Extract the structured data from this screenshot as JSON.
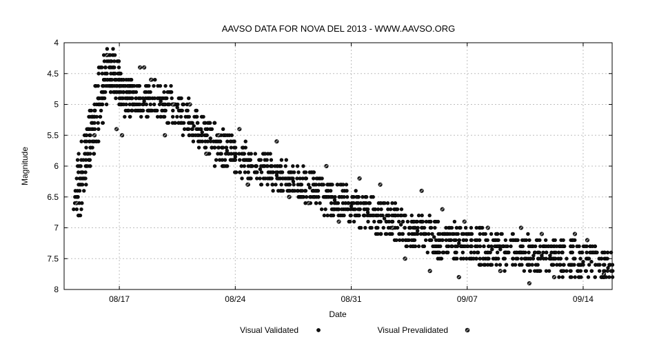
{
  "chart_data": {
    "type": "scatter",
    "title": "AAVSO DATA FOR NOVA DEL 2013 - WWW.AAVSO.ORG",
    "xlabel": "Date",
    "ylabel": "Magnitude",
    "y_inverted": true,
    "ylim": [
      4,
      8
    ],
    "xlim": [
      "2013-08-13 16:00",
      "2013-09-15 18:00"
    ],
    "y_ticks": [
      "4",
      "4.5",
      "5",
      "5.5",
      "6",
      "6.5",
      "7",
      "7.5",
      "8"
    ],
    "x_ticks": [
      {
        "date": "2013-08-17",
        "label": "08/17"
      },
      {
        "date": "2013-08-24",
        "label": "08/24"
      },
      {
        "date": "2013-08-31",
        "label": "08/31"
      },
      {
        "date": "2013-09-07",
        "label": "09/07"
      },
      {
        "date": "2013-09-14",
        "label": "09/14"
      }
    ],
    "grid": true,
    "legend_position": "bottom",
    "series": [
      {
        "name": "Visual Validated",
        "marker": "filled-dot",
        "x": [
          "2013-08-14 12:00",
          "2013-08-14 18:00",
          "2013-08-15 00:00",
          "2013-08-15 06:00",
          "2013-08-15 12:00",
          "2013-08-15 18:00",
          "2013-08-16 00:00",
          "2013-08-16 06:00",
          "2013-08-16 12:00",
          "2013-08-16 18:00",
          "2013-08-17 00:00",
          "2013-08-17 06:00",
          "2013-08-17 12:00",
          "2013-08-17 18:00",
          "2013-08-18 00:00",
          "2013-08-18 12:00",
          "2013-08-19 00:00",
          "2013-08-19 12:00",
          "2013-08-20 00:00",
          "2013-08-20 12:00",
          "2013-08-21 00:00",
          "2013-08-21 12:00",
          "2013-08-22 00:00",
          "2013-08-22 12:00",
          "2013-08-23 00:00",
          "2013-08-23 12:00",
          "2013-08-24 00:00",
          "2013-08-24 12:00",
          "2013-08-25 00:00",
          "2013-08-25 12:00",
          "2013-08-26 00:00",
          "2013-08-26 12:00",
          "2013-08-27 00:00",
          "2013-08-27 12:00",
          "2013-08-28 00:00",
          "2013-08-28 12:00",
          "2013-08-29 00:00",
          "2013-08-29 12:00",
          "2013-08-30 00:00",
          "2013-08-30 12:00",
          "2013-08-31 00:00",
          "2013-08-31 12:00",
          "2013-09-01 00:00",
          "2013-09-01 12:00",
          "2013-09-02 00:00",
          "2013-09-02 12:00",
          "2013-09-03 00:00",
          "2013-09-03 12:00",
          "2013-09-04 00:00",
          "2013-09-04 12:00",
          "2013-09-05 00:00",
          "2013-09-05 12:00",
          "2013-09-06 00:00",
          "2013-09-06 12:00",
          "2013-09-07 00:00",
          "2013-09-07 12:00",
          "2013-09-08 00:00",
          "2013-09-08 12:00",
          "2013-09-09 00:00",
          "2013-09-09 12:00",
          "2013-09-10 00:00",
          "2013-09-10 12:00",
          "2013-09-11 00:00",
          "2013-09-11 12:00",
          "2013-09-12 00:00",
          "2013-09-12 12:00",
          "2013-09-13 00:00",
          "2013-09-13 12:00",
          "2013-09-14 00:00",
          "2013-09-14 12:00",
          "2013-09-15 00:00",
          "2013-09-15 12:00"
        ],
        "y": [
          6.5,
          6.1,
          5.7,
          5.5,
          5.3,
          5.0,
          4.7,
          4.5,
          4.4,
          4.5,
          4.7,
          4.8,
          4.9,
          4.9,
          4.9,
          4.95,
          4.9,
          4.95,
          5.0,
          5.05,
          5.2,
          5.35,
          5.45,
          5.55,
          5.7,
          5.75,
          5.85,
          5.9,
          6.0,
          6.05,
          6.1,
          6.15,
          6.2,
          6.25,
          6.3,
          6.35,
          6.4,
          6.5,
          6.55,
          6.6,
          6.65,
          6.7,
          6.75,
          6.8,
          6.85,
          6.9,
          6.95,
          7.0,
          7.05,
          7.1,
          7.15,
          7.2,
          7.2,
          7.25,
          7.3,
          7.3,
          7.3,
          7.35,
          7.35,
          7.4,
          7.4,
          7.4,
          7.45,
          7.45,
          7.45,
          7.5,
          7.5,
          7.5,
          7.55,
          7.55,
          7.6,
          7.65
        ]
      },
      {
        "name": "Visual Prevalidated",
        "marker": "slashed-dot",
        "x": [
          "2013-08-14 10:00",
          "2013-08-15 12:00",
          "2013-08-16 06:00",
          "2013-08-16 20:00",
          "2013-08-17 04:00",
          "2013-08-18 06:00",
          "2013-08-18 12:00",
          "2013-08-18 22:00",
          "2013-08-19 18:00",
          "2013-08-20 06:00",
          "2013-08-21 06:00",
          "2013-08-22 06:00",
          "2013-08-23 00:00",
          "2013-08-24 06:00",
          "2013-08-24 18:00",
          "2013-08-26 12:00",
          "2013-08-27 06:00",
          "2013-08-28 10:00",
          "2013-08-29 12:00",
          "2013-08-30 06:00",
          "2013-08-31 12:00",
          "2013-09-01 18:00",
          "2013-09-02 12:00",
          "2013-09-03 06:00",
          "2013-09-04 06:00",
          "2013-09-04 18:00",
          "2013-09-05 12:00",
          "2013-09-06 12:00",
          "2013-09-06 20:00",
          "2013-09-08 06:00",
          "2013-09-09 00:00",
          "2013-09-10 06:00",
          "2013-09-10 18:00",
          "2013-09-11 12:00",
          "2013-09-12 06:00",
          "2013-09-13 12:00",
          "2013-09-14 06:00",
          "2013-09-15 06:00"
        ],
        "y": [
          6.6,
          5.5,
          4.2,
          5.4,
          5.5,
          4.4,
          4.4,
          4.6,
          5.5,
          5.0,
          5.0,
          5.8,
          5.5,
          5.4,
          6.3,
          5.6,
          6.5,
          6.6,
          6.0,
          6.9,
          6.2,
          6.3,
          7.0,
          7.5,
          6.4,
          7.7,
          6.7,
          7.8,
          6.9,
          7.0,
          7.7,
          7.0,
          7.9,
          7.1,
          7.8,
          7.1,
          7.2,
          7.75
        ]
      }
    ]
  }
}
